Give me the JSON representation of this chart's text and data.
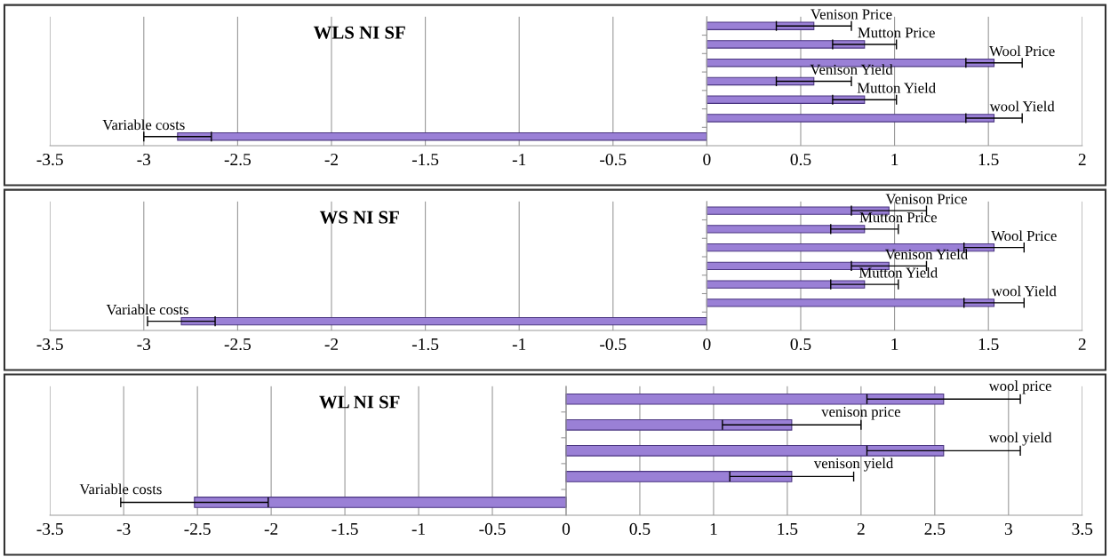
{
  "chart_data": [
    {
      "type": "bar",
      "title": "WLS NI SF",
      "orientation": "horizontal",
      "categories": [
        "Venison Price",
        "Mutton Price",
        "Wool Price",
        "Venison Yield",
        "Mutton Yield",
        "wool Yield",
        "Variable costs"
      ],
      "values": [
        0.57,
        0.84,
        1.53,
        0.57,
        0.84,
        1.53,
        -2.82
      ],
      "errors": [
        0.2,
        0.17,
        0.15,
        0.2,
        0.17,
        0.15,
        0.18
      ],
      "color": "#9a80d6",
      "xlim": [
        -3.5,
        2
      ],
      "xticks": [
        -3.5,
        -3,
        -2.5,
        -2,
        -1.5,
        -1,
        -0.5,
        0,
        0.5,
        1,
        1.5,
        2
      ],
      "grid": "x"
    },
    {
      "type": "bar",
      "title": "WS NI SF",
      "orientation": "horizontal",
      "categories": [
        "Venison Price",
        "Mutton Price",
        "Wool Price",
        "Venison Yield",
        "Mutton Yield",
        "wool Yield",
        "Variable costs"
      ],
      "values": [
        0.97,
        0.84,
        1.53,
        0.97,
        0.84,
        1.53,
        -2.8
      ],
      "errors": [
        0.2,
        0.18,
        0.16,
        0.2,
        0.18,
        0.16,
        0.18
      ],
      "color": "#9a80d6",
      "xlim": [
        -3.5,
        2
      ],
      "xticks": [
        -3.5,
        -3,
        -2.5,
        -2,
        -1.5,
        -1,
        -0.5,
        0,
        0.5,
        1,
        1.5,
        2
      ],
      "grid": "x"
    },
    {
      "type": "bar",
      "title": "WL NI SF",
      "orientation": "horizontal",
      "categories": [
        "wool price",
        "venison price",
        "wool yield",
        "venison yield",
        "Variable costs"
      ],
      "values": [
        2.56,
        1.53,
        2.56,
        1.53,
        -2.52
      ],
      "errors": [
        0.52,
        0.47,
        0.52,
        0.42,
        0.5
      ],
      "color": "#9a80d6",
      "xlim": [
        -3.5,
        3.5
      ],
      "xticks": [
        -3.5,
        -3,
        -2.5,
        -2,
        -1.5,
        -1,
        -0.5,
        0,
        0.5,
        1,
        1.5,
        2,
        2.5,
        3,
        3.5
      ],
      "grid": "x"
    }
  ]
}
